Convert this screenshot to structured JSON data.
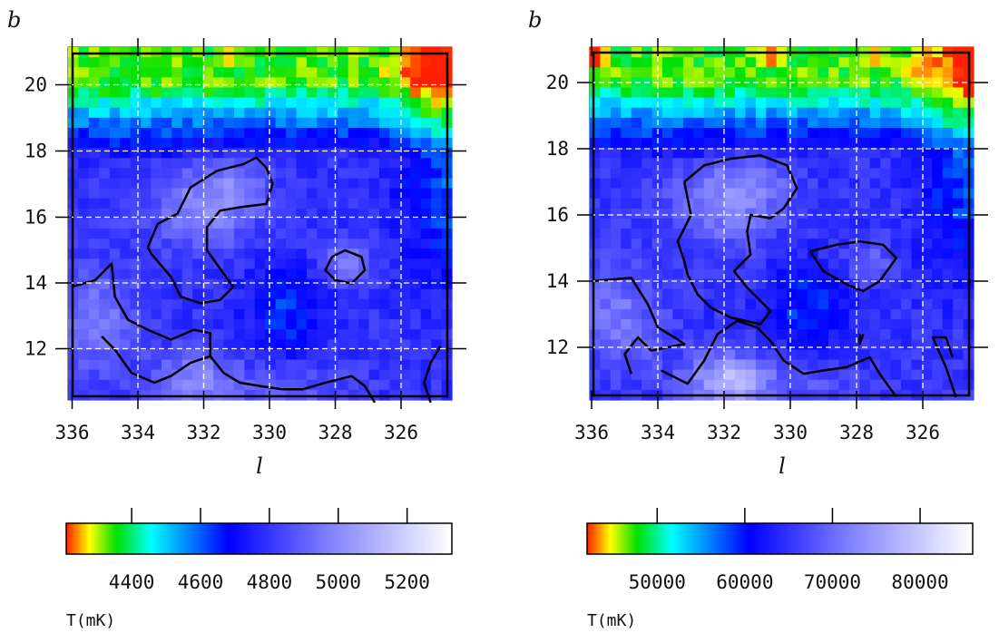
{
  "chart_data": [
    {
      "type": "heatmap",
      "subtype": "contour-map",
      "xlabel": "l",
      "ylabel": "b",
      "xlim": [
        336,
        324.5
      ],
      "ylim": [
        10.4,
        21.1
      ],
      "x_direction": "decreasing",
      "xticks": [
        "336",
        "334",
        "332",
        "330",
        "328",
        "326"
      ],
      "yticks": [
        "20",
        "18",
        "16",
        "14",
        "12"
      ],
      "grid": true,
      "grid_style": "dashed white",
      "colormap": [
        "#ff2000",
        "#ffff00",
        "#00e000",
        "#00ffff",
        "#0000ff",
        "#8080ff",
        "#ffffff"
      ],
      "colorbar": {
        "title": "T(mK)",
        "range": [
          4210,
          5330
        ],
        "tick_labels": [
          "4400",
          "4600",
          "4800",
          "5000",
          "5200"
        ],
        "tick_values": [
          4400,
          4600,
          4800,
          5000,
          5200
        ],
        "position": "bottom"
      },
      "contour_level": 4850,
      "value_range": [
        4210,
        5330
      ]
    },
    {
      "type": "heatmap",
      "subtype": "contour-map",
      "xlabel": "l",
      "ylabel": "b",
      "xlim": [
        336,
        324.5
      ],
      "ylim": [
        10.4,
        21.1
      ],
      "x_direction": "decreasing",
      "xticks": [
        "336",
        "334",
        "332",
        "330",
        "328",
        "326"
      ],
      "yticks": [
        "20",
        "18",
        "16",
        "14",
        "12"
      ],
      "grid": true,
      "grid_style": "dashed white",
      "colormap": [
        "#ff2000",
        "#ffff00",
        "#00e000",
        "#00ffff",
        "#0000ff",
        "#8080ff",
        "#ffffff"
      ],
      "colorbar": {
        "title": "T(mK)",
        "range": [
          42000,
          86000
        ],
        "tick_labels": [
          "50000",
          "60000",
          "70000",
          "80000"
        ],
        "tick_values": [
          50000,
          60000,
          70000,
          80000
        ],
        "position": "bottom"
      },
      "contour_level": 63000,
      "value_range": [
        42000,
        86000
      ]
    }
  ]
}
